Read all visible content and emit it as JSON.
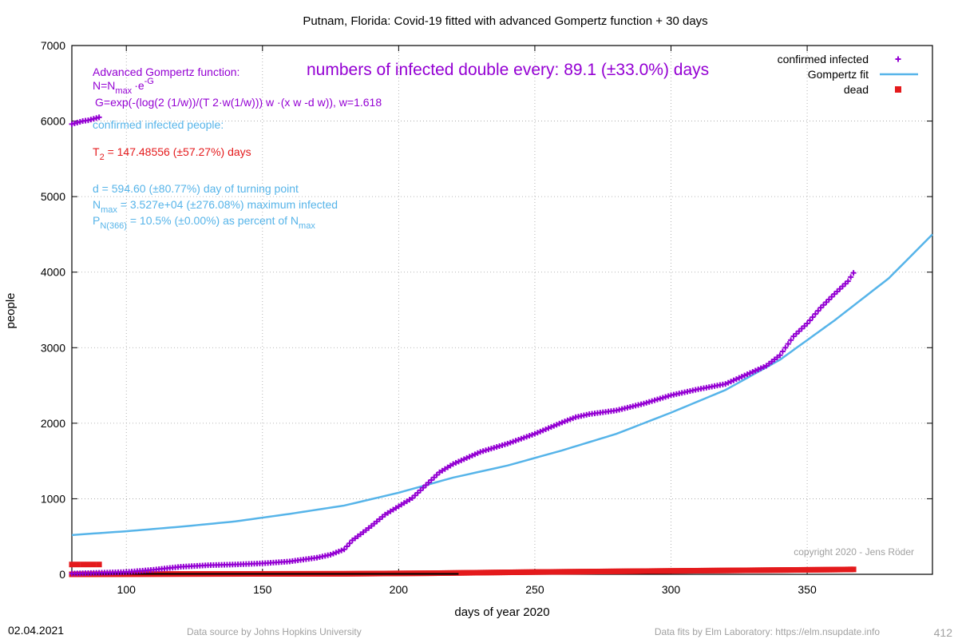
{
  "chart_data": {
    "type": "scatter",
    "title": "Putnam,  Florida: Covid-19 fitted with advanced Gompertz function + 30 days",
    "xlabel": "days of year 2020",
    "ylabel": "people",
    "xlim": [
      80,
      396
    ],
    "ylim": [
      0,
      7000
    ],
    "x_ticks": [
      100,
      150,
      200,
      250,
      300,
      350
    ],
    "y_ticks": [
      0,
      1000,
      2000,
      3000,
      4000,
      5000,
      6000,
      7000
    ],
    "grid": true,
    "legend_position": "top-right",
    "legend": [
      {
        "label": "confirmed infected",
        "marker": "plus",
        "color": "#9400d3"
      },
      {
        "label": "Gompertz fit",
        "marker": "line",
        "color": "#56b4e9"
      },
      {
        "label": "dead",
        "marker": "square",
        "color": "#e41a1c"
      }
    ],
    "series": [
      {
        "name": "confirmed infected",
        "color": "#9400d3",
        "x": [
          80,
          85,
          90,
          95,
          100,
          110,
          120,
          130,
          140,
          150,
          160,
          170,
          175,
          180,
          183,
          186,
          190,
          195,
          200,
          205,
          210,
          215,
          220,
          225,
          230,
          240,
          250,
          260,
          265,
          270,
          280,
          290,
          300,
          310,
          320,
          325,
          330,
          335,
          340,
          345,
          350,
          355,
          360,
          365,
          367
        ],
        "y": [
          10,
          15,
          20,
          25,
          30,
          60,
          100,
          120,
          130,
          145,
          170,
          220,
          260,
          330,
          450,
          530,
          640,
          790,
          900,
          1010,
          1180,
          1350,
          1460,
          1540,
          1620,
          1730,
          1860,
          2010,
          2080,
          2120,
          2170,
          2260,
          2370,
          2450,
          2520,
          2600,
          2680,
          2760,
          2900,
          3150,
          3320,
          3530,
          3710,
          3880,
          3990
        ]
      },
      {
        "name": "Gompertz fit",
        "color": "#56b4e9",
        "x": [
          80,
          100,
          120,
          140,
          160,
          180,
          200,
          220,
          240,
          260,
          280,
          300,
          320,
          340,
          360,
          380,
          396
        ],
        "y": [
          520,
          570,
          630,
          700,
          800,
          910,
          1080,
          1280,
          1440,
          1640,
          1860,
          2140,
          2440,
          2840,
          3360,
          3920,
          4500
        ]
      },
      {
        "name": "dead",
        "color": "#e41a1c",
        "x": [
          80,
          120,
          180,
          213,
          250,
          300,
          335,
          360,
          367
        ],
        "y": [
          0,
          4,
          7,
          15,
          30,
          45,
          55,
          62,
          65
        ]
      }
    ],
    "extra_red_points": {
      "x": [
        80,
        82,
        84,
        86,
        88,
        90
      ],
      "y": [
        130,
        130,
        130,
        130,
        130,
        130
      ]
    },
    "extra_purple_points": {
      "x": [
        80,
        82,
        84,
        86,
        88,
        90
      ],
      "y": [
        5960,
        5980,
        6000,
        6010,
        6030,
        6050
      ]
    },
    "annotations": {
      "gompertz_title": "Advanced Gompertz function:",
      "gompertz_formula_1": "N=N",
      "gompertz_formula_1_sub": "max",
      "gompertz_formula_1_rest": "·e",
      "gompertz_formula_1_sup": "-G",
      "gompertz_formula_2": "G=exp(-(log(2 (1/w))/(T 2·w(1/w))) w ·(x w -d w)), w=1.618",
      "doubling_text": "numbers of infected double every: 89.1 (±33.0%) days",
      "confirmed_header": "confirmed infected people:",
      "t2_main": "T",
      "t2_sub": "2",
      "t2_rest": " = 147.48556 (±57.27%) days",
      "d_text": "d = 594.60 (±80.77%) day of turning point",
      "nmax_main": "N",
      "nmax_sub": "max",
      "nmax_rest": " = 3.527e+04 (±276.08%) maximum infected",
      "p_main": "P",
      "p_sub": "N(366)",
      "p_rest": " = 10.5% (±0.00%) as percent of N",
      "p_end_sub": "max",
      "copyright": "copyright 2020 - Jens Röder"
    },
    "footer": {
      "date": "02.04.2021",
      "data_source": "Data source by Johns Hopkins University",
      "data_fits": "Data fits by Elm Laboratory: https://elm.nsupdate.info",
      "page_number": "412"
    },
    "colors": {
      "purple": "#9400d3",
      "blue": "#56b4e9",
      "red": "#e41a1c",
      "grid": "#a0a0a0"
    }
  }
}
